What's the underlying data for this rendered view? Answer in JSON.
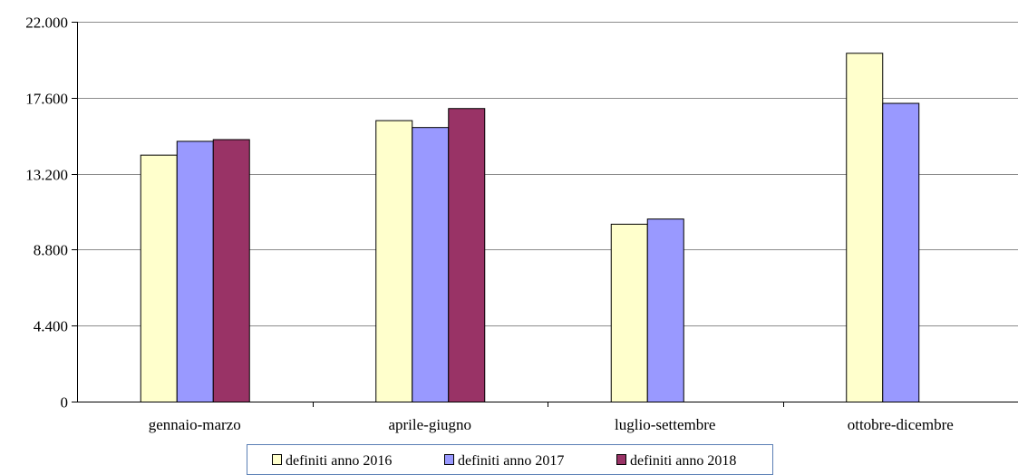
{
  "chart_data": {
    "type": "bar",
    "title": "",
    "xlabel": "",
    "ylabel": "",
    "categories": [
      "gennaio-marzo",
      "aprile-giugno",
      "luglio-settembre",
      "ottobre-dicembre"
    ],
    "y_ticks": [
      {
        "value": 0,
        "label": "0"
      },
      {
        "value": 4400,
        "label": "4.400"
      },
      {
        "value": 8800,
        "label": "8.800"
      },
      {
        "value": 13200,
        "label": "13.200"
      },
      {
        "value": 17600,
        "label": "17.600"
      },
      {
        "value": 22000,
        "label": "22.000"
      }
    ],
    "ylim": [
      0,
      22000
    ],
    "grid": "horizontal",
    "legend_position": "bottom",
    "series": [
      {
        "name": "definiti anno 2016",
        "color": "#ffffcc",
        "values": [
          14300,
          16300,
          10300,
          20200
        ]
      },
      {
        "name": "definiti anno 2017",
        "color": "#9999ff",
        "values": [
          15100,
          15900,
          10600,
          17300
        ]
      },
      {
        "name": "definiti anno 2018",
        "color": "#993366",
        "values": [
          15200,
          17000,
          null,
          null
        ]
      }
    ]
  }
}
